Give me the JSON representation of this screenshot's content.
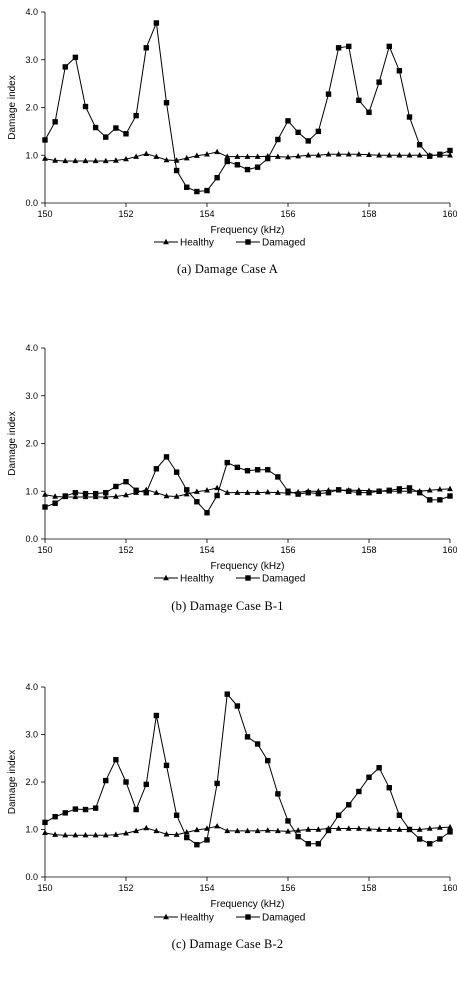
{
  "colors": {
    "line": "#000000",
    "background": "#ffffff"
  },
  "chart_data": [
    {
      "type": "line",
      "caption": "(a)  Damage  Case  A",
      "xlabel": "Frequency (kHz)",
      "ylabel": "Damage index",
      "xlim": [
        150,
        160
      ],
      "ylim": [
        0,
        4
      ],
      "xticks": [
        150,
        152,
        154,
        156,
        158,
        160
      ],
      "yticks": [
        "0.0",
        "1.0",
        "2.0",
        "3.0",
        "4.0"
      ],
      "legend": "bottom-center",
      "series": [
        {
          "name": "Healthy",
          "marker": "triangle",
          "x": [
            150,
            150.25,
            150.5,
            150.75,
            151,
            151.25,
            151.5,
            151.75,
            152,
            152.25,
            152.5,
            152.75,
            153,
            153.25,
            153.5,
            153.75,
            154,
            154.25,
            154.5,
            154.75,
            155,
            155.25,
            155.5,
            155.75,
            156,
            156.25,
            156.5,
            156.75,
            157,
            157.25,
            157.5,
            157.75,
            158,
            158.25,
            158.5,
            158.75,
            159,
            159.25,
            159.5,
            159.75,
            160
          ],
          "y": [
            0.93,
            0.89,
            0.88,
            0.88,
            0.88,
            0.88,
            0.88,
            0.89,
            0.92,
            0.97,
            1.03,
            0.97,
            0.9,
            0.89,
            0.94,
            0.99,
            1.02,
            1.07,
            0.97,
            0.97,
            0.97,
            0.97,
            0.98,
            0.97,
            0.96,
            0.98,
            1.0,
            1.0,
            1.02,
            1.02,
            1.02,
            1.02,
            1.01,
            1.0,
            1.0,
            1.0,
            1.0,
            1.0,
            1.0,
            1.0,
            1.0
          ]
        },
        {
          "name": "Damaged",
          "marker": "square",
          "x": [
            150,
            150.25,
            150.5,
            150.75,
            151,
            151.25,
            151.5,
            151.75,
            152,
            152.25,
            152.5,
            152.75,
            153,
            153.25,
            153.5,
            153.75,
            154,
            154.25,
            154.5,
            154.75,
            155,
            155.25,
            155.5,
            155.75,
            156,
            156.25,
            156.5,
            156.75,
            157,
            157.25,
            157.5,
            157.75,
            158,
            158.25,
            158.5,
            158.75,
            159,
            159.25,
            159.5,
            159.75,
            160
          ],
          "y": [
            1.32,
            1.7,
            2.85,
            3.05,
            2.02,
            1.58,
            1.38,
            1.57,
            1.45,
            1.83,
            3.25,
            3.77,
            2.1,
            0.68,
            0.33,
            0.24,
            0.26,
            0.53,
            0.87,
            0.8,
            0.7,
            0.75,
            0.93,
            1.33,
            1.72,
            1.48,
            1.3,
            1.5,
            2.28,
            3.25,
            3.28,
            2.15,
            1.9,
            2.53,
            3.28,
            2.77,
            1.8,
            1.22,
            0.98,
            1.02,
            1.1
          ]
        }
      ]
    },
    {
      "type": "line",
      "caption": "(b)  Damage  Case  B-1",
      "xlabel": "Frequency (kHz)",
      "ylabel": "Damage index",
      "xlim": [
        150,
        160
      ],
      "ylim": [
        0,
        4
      ],
      "xticks": [
        150,
        152,
        154,
        156,
        158,
        160
      ],
      "yticks": [
        "0.0",
        "1.0",
        "2.0",
        "3.0",
        "4.0"
      ],
      "legend": "bottom-center",
      "series": [
        {
          "name": "Healthy",
          "marker": "triangle",
          "x": [
            150,
            150.25,
            150.5,
            150.75,
            151,
            151.25,
            151.5,
            151.75,
            152,
            152.25,
            152.5,
            152.75,
            153,
            153.25,
            153.5,
            153.75,
            154,
            154.25,
            154.5,
            154.75,
            155,
            155.25,
            155.5,
            155.75,
            156,
            156.25,
            156.5,
            156.75,
            157,
            157.25,
            157.5,
            157.75,
            158,
            158.25,
            158.5,
            158.75,
            159,
            159.25,
            159.5,
            159.75,
            160
          ],
          "y": [
            0.93,
            0.89,
            0.88,
            0.88,
            0.88,
            0.88,
            0.88,
            0.89,
            0.92,
            0.97,
            1.03,
            0.97,
            0.9,
            0.89,
            0.94,
            0.99,
            1.02,
            1.07,
            0.97,
            0.97,
            0.97,
            0.97,
            0.98,
            0.97,
            0.96,
            0.98,
            1.0,
            1.0,
            1.02,
            1.02,
            1.02,
            1.02,
            1.01,
            1.0,
            1.0,
            1.0,
            1.0,
            1.0,
            1.02,
            1.04,
            1.05
          ]
        },
        {
          "name": "Damaged",
          "marker": "square",
          "x": [
            150,
            150.25,
            150.5,
            150.75,
            151,
            151.25,
            151.5,
            151.75,
            152,
            152.25,
            152.5,
            152.75,
            153,
            153.25,
            153.5,
            153.75,
            154,
            154.25,
            154.5,
            154.75,
            155,
            155.25,
            155.5,
            155.75,
            156,
            156.25,
            156.5,
            156.75,
            157,
            157.25,
            157.5,
            157.75,
            158,
            158.25,
            158.5,
            158.75,
            159,
            159.25,
            159.5,
            159.75,
            160
          ],
          "y": [
            0.67,
            0.75,
            0.9,
            0.97,
            0.95,
            0.95,
            0.97,
            1.1,
            1.2,
            1.02,
            0.97,
            1.47,
            1.72,
            1.4,
            1.03,
            0.78,
            0.55,
            0.91,
            1.6,
            1.5,
            1.43,
            1.45,
            1.45,
            1.3,
            1.0,
            0.94,
            0.97,
            0.95,
            0.97,
            1.03,
            1.0,
            0.97,
            0.97,
            1.0,
            1.02,
            1.05,
            1.07,
            0.97,
            0.82,
            0.82,
            0.9
          ]
        }
      ]
    },
    {
      "type": "line",
      "caption": "(c)  Damage  Case  B-2",
      "xlabel": "Frequency (kHz)",
      "ylabel": "Damage index",
      "xlim": [
        150,
        160
      ],
      "ylim": [
        0,
        4
      ],
      "xticks": [
        150,
        152,
        154,
        156,
        158,
        160
      ],
      "yticks": [
        "0.0",
        "1.0",
        "2.0",
        "3.0",
        "4.0"
      ],
      "legend": "bottom-center",
      "series": [
        {
          "name": "Healthy",
          "marker": "triangle",
          "x": [
            150,
            150.25,
            150.5,
            150.75,
            151,
            151.25,
            151.5,
            151.75,
            152,
            152.25,
            152.5,
            152.75,
            153,
            153.25,
            153.5,
            153.75,
            154,
            154.25,
            154.5,
            154.75,
            155,
            155.25,
            155.5,
            155.75,
            156,
            156.25,
            156.5,
            156.75,
            157,
            157.25,
            157.5,
            157.75,
            158,
            158.25,
            158.5,
            158.75,
            159,
            159.25,
            159.5,
            159.75,
            160
          ],
          "y": [
            0.93,
            0.89,
            0.88,
            0.88,
            0.88,
            0.88,
            0.88,
            0.89,
            0.92,
            0.97,
            1.03,
            0.97,
            0.9,
            0.89,
            0.94,
            0.99,
            1.02,
            1.07,
            0.97,
            0.97,
            0.97,
            0.97,
            0.98,
            0.97,
            0.96,
            0.98,
            1.0,
            1.0,
            1.02,
            1.02,
            1.02,
            1.02,
            1.01,
            1.0,
            1.0,
            1.0,
            1.0,
            1.0,
            1.02,
            1.04,
            1.05
          ]
        },
        {
          "name": "Damaged",
          "marker": "square",
          "x": [
            150,
            150.25,
            150.5,
            150.75,
            151,
            151.25,
            151.5,
            151.75,
            152,
            152.25,
            152.5,
            152.75,
            153,
            153.25,
            153.5,
            153.75,
            154,
            154.25,
            154.5,
            154.75,
            155,
            155.25,
            155.5,
            155.75,
            156,
            156.25,
            156.5,
            156.75,
            157,
            157.25,
            157.5,
            157.75,
            158,
            158.25,
            158.5,
            158.75,
            159,
            159.25,
            159.5,
            159.75,
            160
          ],
          "y": [
            1.15,
            1.27,
            1.35,
            1.43,
            1.42,
            1.45,
            2.03,
            2.47,
            2.0,
            1.42,
            1.95,
            3.4,
            2.35,
            1.3,
            0.83,
            0.68,
            0.78,
            1.97,
            3.85,
            3.6,
            2.95,
            2.8,
            2.45,
            1.75,
            1.18,
            0.85,
            0.7,
            0.7,
            0.98,
            1.3,
            1.52,
            1.8,
            2.1,
            2.3,
            1.88,
            1.3,
            1.0,
            0.8,
            0.7,
            0.8,
            0.95
          ]
        }
      ]
    }
  ]
}
